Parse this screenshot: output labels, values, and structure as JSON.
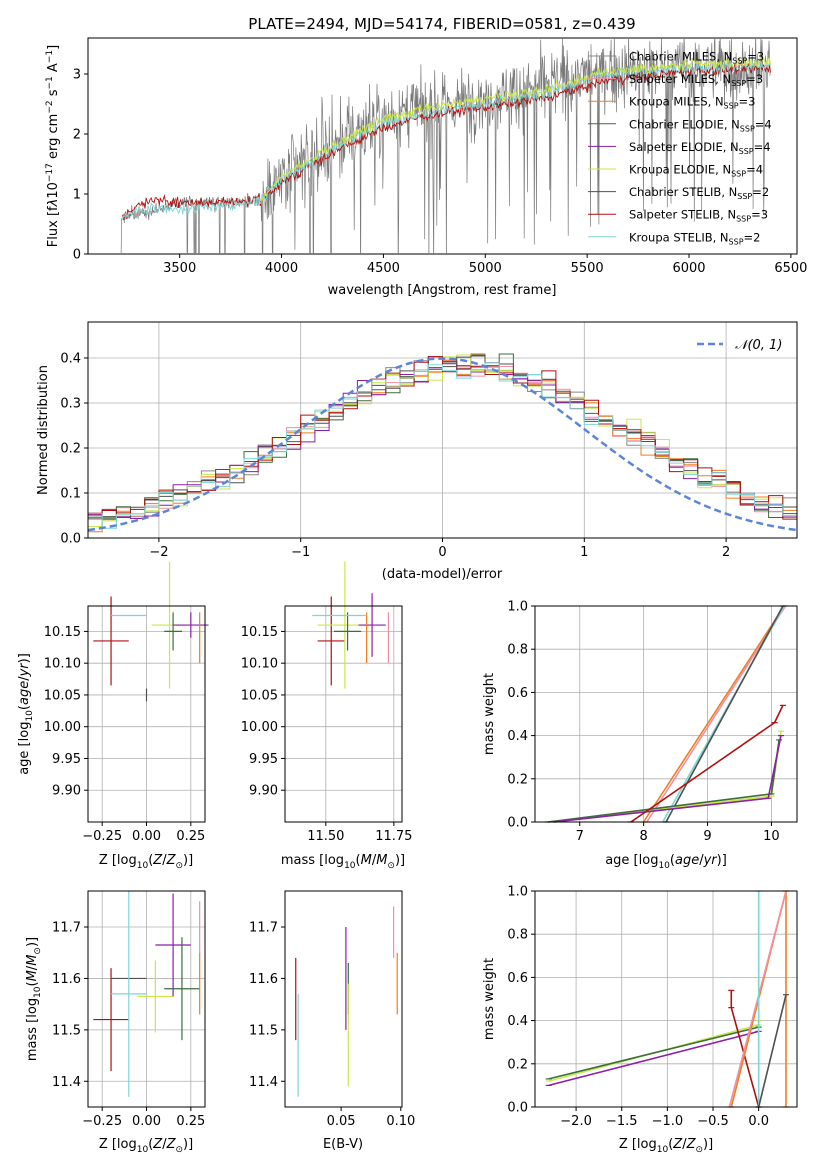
{
  "title": "PLATE=2494, MJD=54174, FIBERID=0581, z=0.439",
  "colors": {
    "chabrier_miles": "#888888",
    "salpeter_miles": "#f08fa6",
    "kroupa_miles": "#f07f1e",
    "chabrier_elodie": "#3b6e3b",
    "salpeter_elodie": "#8b1fa8",
    "kroupa_elodie": "#c9e84a",
    "chabrier_stelib": "#505050",
    "salpeter_stelib": "#b01010",
    "kroupa_stelib": "#7fd4d4",
    "normal_curve": "#5b86d6",
    "grid": "#b0b0b0"
  },
  "legend": [
    {
      "name": "Chabrier MILES, N",
      "sub": "SSP",
      "eq": "=3",
      "key": "chabrier_miles"
    },
    {
      "name": "Salpeter MILES, N",
      "sub": "SSP",
      "eq": "=3",
      "key": "salpeter_miles"
    },
    {
      "name": "Kroupa MILES, N",
      "sub": "SSP",
      "eq": "=3",
      "key": "kroupa_miles"
    },
    {
      "name": "Chabrier ELODIE, N",
      "sub": "SSP",
      "eq": "=4",
      "key": "chabrier_elodie"
    },
    {
      "name": "Salpeter ELODIE, N",
      "sub": "SSP",
      "eq": "=4",
      "key": "salpeter_elodie"
    },
    {
      "name": "Kroupa ELODIE, N",
      "sub": "SSP",
      "eq": "=4",
      "key": "kroupa_elodie"
    },
    {
      "name": "Chabrier STELIB, N",
      "sub": "SSP",
      "eq": "=2",
      "key": "chabrier_stelib"
    },
    {
      "name": "Salpeter STELIB, N",
      "sub": "SSP",
      "eq": "=3",
      "key": "salpeter_stelib"
    },
    {
      "name": "Kroupa STELIB, N",
      "sub": "SSP",
      "eq": "=2",
      "key": "kroupa_stelib"
    }
  ],
  "chart_data": [
    {
      "type": "line",
      "panel": "spectrum",
      "xlabel": "wavelength [Angstrom, rest frame]",
      "ylabel": "Flux [f_λ 10^-17 erg cm^-2 s^-1 A^-1]",
      "xlim": [
        3050,
        6530
      ],
      "ylim": [
        0,
        3.6
      ],
      "xticks": [
        3500,
        4000,
        4500,
        5000,
        5500,
        6000,
        6500
      ],
      "yticks": [
        0,
        1,
        2,
        3
      ],
      "data_series": {
        "name": "data",
        "range": [
          3210,
          6400
        ],
        "level_points": [
          [
            3210,
            0.6
          ],
          [
            3500,
            0.85
          ],
          [
            3900,
            0.9
          ],
          [
            4200,
            1.7
          ],
          [
            4500,
            2.3
          ],
          [
            5000,
            2.6
          ],
          [
            5500,
            3.0
          ],
          [
            6000,
            3.1
          ],
          [
            6400,
            3.1
          ]
        ]
      },
      "model_series": [
        {
          "key": "salpeter_stelib",
          "points": [
            [
              3220,
              0.6
            ],
            [
              3300,
              0.85
            ],
            [
              3400,
              0.9
            ],
            [
              3500,
              0.85
            ],
            [
              3700,
              0.85
            ],
            [
              3900,
              0.9
            ],
            [
              4000,
              1.2
            ],
            [
              4200,
              1.6
            ],
            [
              4500,
              2.1
            ],
            [
              4700,
              2.3
            ],
            [
              5000,
              2.45
            ],
            [
              5300,
              2.6
            ],
            [
              5600,
              2.9
            ],
            [
              6000,
              3.05
            ],
            [
              6400,
              3.1
            ]
          ]
        },
        {
          "key": "kroupa_stelib",
          "points": [
            [
              3220,
              0.6
            ],
            [
              3300,
              0.75
            ],
            [
              3400,
              0.75
            ],
            [
              3500,
              0.75
            ],
            [
              3700,
              0.8
            ],
            [
              3900,
              0.9
            ],
            [
              4000,
              1.25
            ],
            [
              4200,
              1.65
            ],
            [
              4500,
              2.2
            ],
            [
              4700,
              2.35
            ],
            [
              5000,
              2.5
            ],
            [
              5300,
              2.7
            ],
            [
              5600,
              3.0
            ],
            [
              6000,
              3.1
            ],
            [
              6400,
              3.15
            ]
          ]
        },
        {
          "key": "kroupa_elodie",
          "points": [
            [
              3900,
              0.9
            ],
            [
              4000,
              1.3
            ],
            [
              4200,
              1.7
            ],
            [
              4500,
              2.25
            ],
            [
              4700,
              2.4
            ],
            [
              5000,
              2.6
            ],
            [
              5300,
              2.75
            ],
            [
              5600,
              3.05
            ],
            [
              6000,
              3.15
            ],
            [
              6400,
              3.2
            ]
          ]
        }
      ]
    },
    {
      "type": "line",
      "panel": "residual histogram",
      "xlabel": "(data-model)/error",
      "ylabel": "Normed distribution",
      "xlim": [
        -2.5,
        2.5
      ],
      "ylim": [
        0,
        0.48
      ],
      "xticks": [
        -2,
        -1,
        0,
        1,
        2
      ],
      "yticks": [
        0.0,
        0.1,
        0.2,
        0.3,
        0.4
      ],
      "legend_label": "𝒩(0,1)",
      "legend_placement": "upper right",
      "hist_bins": [
        -2.5,
        2.5,
        0.1
      ]
    },
    {
      "type": "scatter",
      "panel": "age vs Z",
      "xlabel": "Z [log10(Z/Z⊙)]",
      "ylabel": "age [log10(age/yr)]",
      "xlim": [
        -0.33,
        0.33
      ],
      "ylim": [
        9.85,
        10.19
      ],
      "xticks": [
        -0.25,
        0.0,
        0.25
      ],
      "yticks": [
        9.9,
        9.95,
        10.0,
        10.05,
        10.1,
        10.15
      ],
      "points": [
        {
          "key": "salpeter_stelib",
          "x": -0.2,
          "y": 10.135,
          "xerr": 0.1,
          "yerr": 0.07
        },
        {
          "key": "chabrier_stelib",
          "x": 0.0,
          "y": 10.05,
          "xerr": 0.0,
          "yerr": 0.01
        },
        {
          "key": "kroupa_stelib",
          "x": -0.1,
          "y": 10.175,
          "xerr": 0.1,
          "yerr": 0.0
        },
        {
          "key": "kroupa_elodie",
          "x": 0.13,
          "y": 10.16,
          "xerr": 0.1,
          "yerr": 0.1
        },
        {
          "key": "salpeter_elodie",
          "x": 0.25,
          "y": 10.16,
          "xerr": 0.1,
          "yerr": 0.02
        },
        {
          "key": "chabrier_elodie",
          "x": 0.15,
          "y": 10.15,
          "xerr": 0.05,
          "yerr": 0.03
        },
        {
          "key": "kroupa_miles",
          "x": 0.3,
          "y": 10.14,
          "xerr": 0.0,
          "yerr": 0.04
        }
      ]
    },
    {
      "type": "scatter",
      "panel": "age vs mass",
      "xlabel": "mass [log10(M/M⊙)]",
      "ylabel": "",
      "xlim": [
        11.35,
        11.78
      ],
      "ylim": [
        9.85,
        10.19
      ],
      "xticks": [
        11.5,
        11.75
      ],
      "yticks": [
        9.9,
        9.95,
        10.0,
        10.05,
        10.1,
        10.15
      ],
      "points": [
        {
          "key": "salpeter_stelib",
          "x": 11.52,
          "y": 10.135,
          "xerr": 0.05,
          "yerr": 0.07
        },
        {
          "key": "kroupa_elodie",
          "x": 11.57,
          "y": 10.16,
          "xerr": 0.1,
          "yerr": 0.1
        },
        {
          "key": "chabrier_elodie",
          "x": 11.58,
          "y": 10.15,
          "xerr": 0.05,
          "yerr": 0.03
        },
        {
          "key": "salpeter_elodie",
          "x": 11.67,
          "y": 10.16,
          "xerr": 0.05,
          "yerr": 0.05
        },
        {
          "key": "kroupa_miles",
          "x": 11.65,
          "y": 10.14,
          "xerr": 0.0,
          "yerr": 0.04
        },
        {
          "key": "salpeter_miles",
          "x": 11.73,
          "y": 10.14,
          "xerr": 0.0,
          "yerr": 0.04
        },
        {
          "key": "kroupa_stelib",
          "x": 11.55,
          "y": 10.175,
          "xerr": 0.1,
          "yerr": 0.0
        }
      ]
    },
    {
      "type": "line",
      "panel": "mass weight vs age",
      "xlabel": "age [log10(age/yr)]",
      "ylabel": "mass weight",
      "xlim": [
        6.3,
        10.4
      ],
      "ylim": [
        0,
        1
      ],
      "xticks": [
        7,
        8,
        9,
        10
      ],
      "yticks": [
        0.0,
        0.2,
        0.4,
        0.6,
        0.8,
        1.0
      ]
    },
    {
      "type": "scatter",
      "panel": "mass vs Z",
      "xlabel": "Z [log10(Z/Z⊙)]",
      "ylabel": "mass [log10(M/M⊙)]",
      "xlim": [
        -0.33,
        0.33
      ],
      "ylim": [
        11.35,
        11.77
      ],
      "xticks": [
        -0.25,
        0.0,
        0.25
      ],
      "yticks": [
        11.4,
        11.5,
        11.6,
        11.7
      ],
      "points": [
        {
          "key": "salpeter_stelib",
          "x": -0.2,
          "y": 11.52,
          "xerr": 0.1,
          "yerr": 0.1
        },
        {
          "key": "chabrier_stelib",
          "x": -0.1,
          "y": 11.6,
          "xerr": 0.1,
          "yerr": 0.0
        },
        {
          "key": "kroupa_stelib",
          "x": -0.1,
          "y": 11.57,
          "xerr": 0.1,
          "yerr": 0.2
        },
        {
          "key": "kroupa_elodie",
          "x": 0.05,
          "y": 11.565,
          "xerr": 0.1,
          "yerr": 0.07
        },
        {
          "key": "salpeter_elodie",
          "x": 0.15,
          "y": 11.665,
          "xerr": 0.1,
          "yerr": 0.1
        },
        {
          "key": "chabrier_elodie",
          "x": 0.2,
          "y": 11.58,
          "xerr": 0.1,
          "yerr": 0.1
        },
        {
          "key": "salpeter_miles",
          "x": 0.3,
          "y": 11.7,
          "xerr": 0.0,
          "yerr": 0.05
        },
        {
          "key": "kroupa_miles",
          "x": 0.3,
          "y": 11.59,
          "xerr": 0.0,
          "yerr": 0.06
        }
      ]
    },
    {
      "type": "scatter",
      "panel": "mass vs E(B-V)",
      "xlabel": "E(B-V)",
      "ylabel": "",
      "xlim": [
        0.003,
        0.101
      ],
      "ylim": [
        11.35,
        11.77
      ],
      "xticks": [
        0.05,
        0.1
      ],
      "yticks": [
        11.4,
        11.5,
        11.6,
        11.7
      ],
      "points": [
        {
          "key": "salpeter_stelib",
          "x": 0.012,
          "y": 11.56,
          "xerr": 0.0,
          "yerr": 0.08
        },
        {
          "key": "kroupa_stelib",
          "x": 0.014,
          "y": 11.47,
          "xerr": 0.0,
          "yerr": 0.1
        },
        {
          "key": "salpeter_elodie",
          "x": 0.054,
          "y": 11.6,
          "xerr": 0.0,
          "yerr": 0.1
        },
        {
          "key": "chabrier_elodie",
          "x": 0.056,
          "y": 11.58,
          "xerr": 0.0,
          "yerr": 0.05
        },
        {
          "key": "kroupa_elodie",
          "x": 0.056,
          "y": 11.49,
          "xerr": 0.0,
          "yerr": 0.1
        },
        {
          "key": "salpeter_miles",
          "x": 0.094,
          "y": 11.69,
          "xerr": 0.0,
          "yerr": 0.05
        },
        {
          "key": "kroupa_miles",
          "x": 0.097,
          "y": 11.59,
          "xerr": 0.0,
          "yerr": 0.06
        }
      ]
    },
    {
      "type": "line",
      "panel": "mass weight vs Z",
      "xlabel": "Z [log10(Z/Z⊙)]",
      "ylabel": "mass weight",
      "xlim": [
        -2.45,
        0.42
      ],
      "ylim": [
        0,
        1
      ],
      "xticks": [
        -2.0,
        -1.5,
        -1.0,
        -0.5,
        0.0
      ],
      "yticks": [
        0.0,
        0.2,
        0.4,
        0.6,
        0.8,
        1.0
      ]
    }
  ],
  "tick_labels": {
    "spectrum_x": [
      "3500",
      "4000",
      "4500",
      "5000",
      "5500",
      "6000",
      "6500"
    ],
    "spectrum_y": [
      "0",
      "1",
      "2",
      "3"
    ],
    "hist_x": [
      "−2",
      "−1",
      "0",
      "1",
      "2"
    ],
    "hist_y": [
      "0.0",
      "0.1",
      "0.2",
      "0.3",
      "0.4"
    ],
    "z_x": [
      "−0.25",
      "0.00",
      "0.25"
    ],
    "age_y": [
      "9.90",
      "9.95",
      "10.00",
      "10.05",
      "10.10",
      "10.15"
    ],
    "mass_x": [
      "11.50",
      "11.75"
    ],
    "mw_y": [
      "0.0",
      "0.2",
      "0.4",
      "0.6",
      "0.8",
      "1.0"
    ],
    "mwage_x": [
      "7",
      "8",
      "9",
      "10"
    ],
    "massz_y": [
      "11.4",
      "11.5",
      "11.6",
      "11.7"
    ],
    "ebv_x": [
      "0.05",
      "0.10"
    ],
    "mwz_x": [
      "−2.0",
      "−1.5",
      "−1.0",
      "−0.5",
      "0.0"
    ]
  }
}
